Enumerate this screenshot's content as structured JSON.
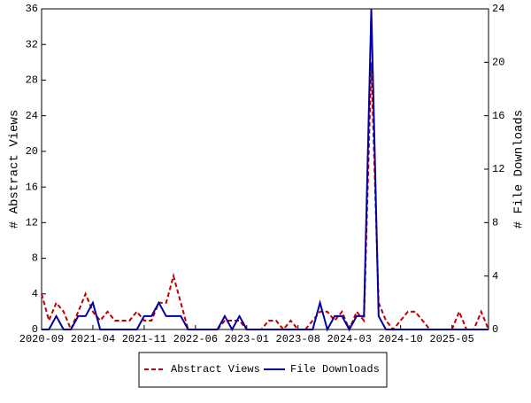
{
  "chart_data": {
    "type": "line",
    "categories": [
      "2020-09",
      null,
      null,
      null,
      null,
      null,
      null,
      "2021-04",
      null,
      null,
      null,
      null,
      null,
      null,
      "2021-11",
      null,
      null,
      null,
      null,
      null,
      null,
      "2022-06",
      null,
      null,
      null,
      null,
      null,
      null,
      "2023-01",
      null,
      null,
      null,
      null,
      null,
      null,
      "2023-08",
      null,
      null,
      null,
      null,
      null,
      null,
      "2024-03",
      null,
      null,
      null,
      null,
      null,
      null,
      "2024-10",
      null,
      null,
      null,
      null,
      null,
      null,
      "2025-05",
      null,
      null,
      null,
      null,
      null
    ],
    "series": [
      {
        "name": "Abstract Views",
        "color": "#c00000",
        "style": "dashed",
        "axis": "y",
        "values": [
          4,
          1,
          3,
          2,
          0,
          2,
          4,
          2,
          1,
          2,
          1,
          1,
          1,
          2,
          1,
          1,
          3,
          3,
          6,
          3,
          0,
          0,
          0,
          0,
          0,
          1,
          1,
          1,
          0,
          0,
          0,
          1,
          1,
          0,
          1,
          0,
          0,
          1,
          2,
          2,
          1,
          2,
          0,
          2,
          1,
          30,
          3,
          1,
          0,
          1,
          2,
          2,
          1,
          0,
          0,
          0,
          0,
          2,
          0,
          0,
          2,
          0
        ]
      },
      {
        "name": "File Downloads",
        "color": "#0000a0",
        "style": "solid",
        "axis": "y2",
        "values": [
          0,
          0,
          1,
          0,
          0,
          1,
          1,
          2,
          0,
          0,
          0,
          0,
          0,
          0,
          1,
          1,
          2,
          1,
          1,
          1,
          0,
          0,
          0,
          0,
          0,
          1,
          0,
          1,
          0,
          0,
          0,
          0,
          0,
          0,
          0,
          0,
          0,
          0,
          2,
          0,
          1,
          1,
          0,
          1,
          1,
          24,
          1,
          0,
          0,
          0,
          0,
          0,
          0,
          0,
          0,
          0,
          0,
          0,
          0,
          0,
          0,
          0
        ]
      }
    ],
    "ylabel": "# Abstract Views",
    "y2label": "# File Downloads",
    "ylim": [
      0,
      36
    ],
    "yticks": [
      0,
      4,
      8,
      12,
      16,
      20,
      24,
      28,
      32,
      36
    ],
    "y2lim": [
      0,
      24
    ],
    "y2ticks": [
      0,
      4,
      8,
      12,
      16,
      20,
      24
    ],
    "grid": false
  }
}
